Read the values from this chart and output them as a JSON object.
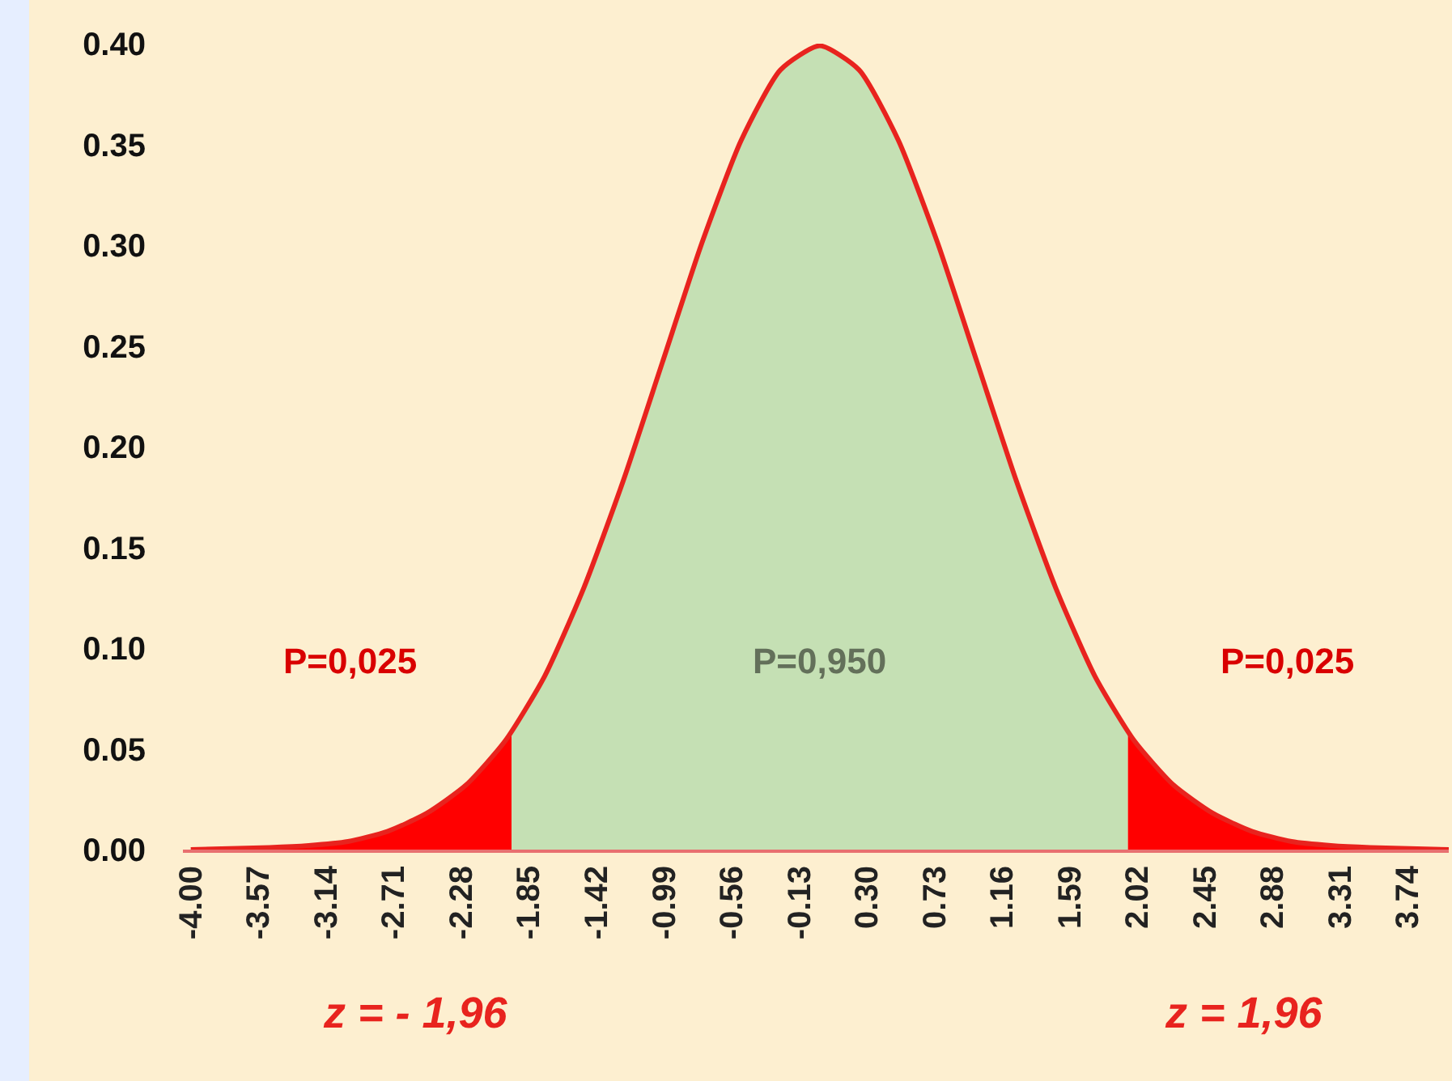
{
  "chart_data": {
    "type": "area",
    "xlim": [
      -4.05,
      4.0
    ],
    "ylim": [
      0,
      0.4
    ],
    "xticks": [
      {
        "value": -4.0,
        "label": "-4.00"
      },
      {
        "value": -3.57,
        "label": "-3.57"
      },
      {
        "value": -3.14,
        "label": "-3.14"
      },
      {
        "value": -2.71,
        "label": "-2.71"
      },
      {
        "value": -2.28,
        "label": "-2.28"
      },
      {
        "value": -1.85,
        "label": "-1.85"
      },
      {
        "value": -1.42,
        "label": "-1.42"
      },
      {
        "value": -0.99,
        "label": "-0.99"
      },
      {
        "value": -0.56,
        "label": "-0.56"
      },
      {
        "value": -0.13,
        "label": "-0.13"
      },
      {
        "value": 0.3,
        "label": "0.30"
      },
      {
        "value": 0.73,
        "label": "0.73"
      },
      {
        "value": 1.16,
        "label": "1.16"
      },
      {
        "value": 1.59,
        "label": "1.59"
      },
      {
        "value": 2.02,
        "label": "2.02"
      },
      {
        "value": 2.45,
        "label": "2.45"
      },
      {
        "value": 2.88,
        "label": "2.88"
      },
      {
        "value": 3.31,
        "label": "3.31"
      },
      {
        "value": 3.74,
        "label": "3.74"
      }
    ],
    "yticks": [
      {
        "value": 0,
        "label": "0.00"
      },
      {
        "value": 0.05,
        "label": "0.05"
      },
      {
        "value": 0.1,
        "label": "0.10"
      },
      {
        "value": 0.15,
        "label": "0.15"
      },
      {
        "value": 0.2,
        "label": "0.20"
      },
      {
        "value": 0.25,
        "label": "0.25"
      },
      {
        "value": 0.3,
        "label": "0.30"
      },
      {
        "value": 0.35,
        "label": "0.35"
      },
      {
        "value": 0.4,
        "label": "0.40"
      }
    ],
    "grid": false,
    "series": [
      {
        "color": "#ff0000",
        "x": [
          -4,
          -3.5,
          -3.25,
          -3,
          -2.75,
          -2.5,
          -2.25,
          -2,
          -1.96
        ],
        "values": [
          0.0,
          0.001,
          0.002,
          0.004,
          0.009,
          0.018,
          0.032,
          0.054,
          0.058
        ]
      },
      {
        "color": "#c5e0b4",
        "x": [
          -1.96,
          -1.75,
          -1.5,
          -1.25,
          -1,
          -0.75,
          -0.5,
          -0.25,
          0,
          0.25,
          0.5,
          0.75,
          1,
          1.25,
          1.5,
          1.75,
          1.96
        ],
        "values": [
          0.058,
          0.086,
          0.13,
          0.183,
          0.242,
          0.301,
          0.352,
          0.387,
          0.399,
          0.387,
          0.352,
          0.301,
          0.242,
          0.183,
          0.13,
          0.086,
          0.058
        ]
      },
      {
        "color": "#ff0000",
        "x": [
          1.96,
          2,
          2.25,
          2.5,
          2.75,
          3,
          3.25,
          3.5,
          4
        ],
        "values": [
          0.058,
          0.054,
          0.032,
          0.018,
          0.009,
          0.004,
          0.002,
          0.001,
          0.0
        ]
      },
      {
        "type": "line",
        "color": "#e8231e",
        "x": [
          -4,
          -3.5,
          -3.25,
          -3,
          -2.75,
          -2.5,
          -2.25,
          -2,
          -1.75,
          -1.5,
          -1.25,
          -1,
          -0.75,
          -0.5,
          -0.25,
          0,
          0.25,
          0.5,
          0.75,
          1,
          1.25,
          1.5,
          1.75,
          2,
          2.25,
          2.5,
          2.75,
          3,
          3.25,
          3.5,
          4
        ],
        "values": [
          0.0,
          0.001,
          0.002,
          0.004,
          0.009,
          0.018,
          0.032,
          0.054,
          0.086,
          0.13,
          0.183,
          0.242,
          0.301,
          0.352,
          0.387,
          0.399,
          0.387,
          0.352,
          0.301,
          0.242,
          0.183,
          0.13,
          0.086,
          0.054,
          0.032,
          0.018,
          0.009,
          0.004,
          0.002,
          0.001,
          0.0
        ]
      }
    ],
    "annotations": [
      "P=0,025",
      "P=0,950",
      "P=0,025",
      "z = - 1,96",
      "z = 1,96"
    ]
  }
}
